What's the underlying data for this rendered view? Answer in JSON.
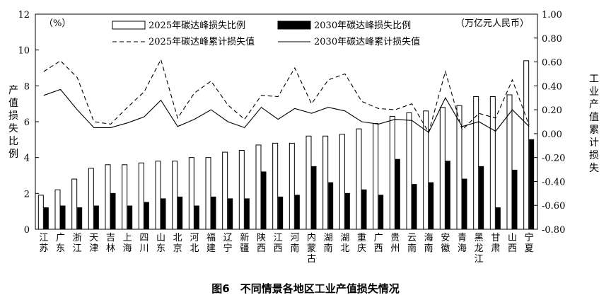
{
  "caption": "图6　不同情景各地区工业产值损失情况",
  "chart_data": {
    "type": "bar",
    "combo": "bar-and-line",
    "left_axis": {
      "unit": "（%）",
      "label_chars": [
        "产",
        "值",
        "损",
        "失",
        "比",
        "例"
      ],
      "ylim": [
        0,
        12
      ],
      "ticks": [
        0,
        2,
        4,
        6,
        8,
        10,
        12
      ]
    },
    "right_axis": {
      "unit": "（万亿元人民币）",
      "label_chars": [
        "工",
        "业",
        "产",
        "值",
        "累",
        "计",
        "损",
        "失"
      ],
      "ylim": [
        -0.8,
        1.0
      ],
      "ticks": [
        "-0.80",
        "-0.60",
        "-0.40",
        "-0.20",
        "0.00",
        "0.20",
        "0.40",
        "0.60",
        "0.80",
        "1.00"
      ]
    },
    "categories": [
      [
        "江",
        "苏"
      ],
      [
        "广",
        "东"
      ],
      [
        "浙",
        "江"
      ],
      [
        "天",
        "津"
      ],
      [
        "吉",
        "林"
      ],
      [
        "上",
        "海"
      ],
      [
        "四",
        "川"
      ],
      [
        "山",
        "东"
      ],
      [
        "北",
        "京"
      ],
      [
        "河",
        "北"
      ],
      [
        "福",
        "建"
      ],
      [
        "辽",
        "宁"
      ],
      [
        "新",
        "疆"
      ],
      [
        "陕",
        "西"
      ],
      [
        "江",
        "西"
      ],
      [
        "河",
        "南"
      ],
      [
        "内",
        "蒙",
        "古"
      ],
      [
        "湖",
        "南"
      ],
      [
        "湖",
        "北"
      ],
      [
        "重",
        "庆"
      ],
      [
        "广",
        "西"
      ],
      [
        "贵",
        "州"
      ],
      [
        "云",
        "南"
      ],
      [
        "海",
        "南"
      ],
      [
        "安",
        "徽"
      ],
      [
        "青",
        "海"
      ],
      [
        "黑",
        "龙",
        "江"
      ],
      [
        "甘",
        "肃"
      ],
      [
        "山",
        "西"
      ],
      [
        "宁",
        "夏"
      ]
    ],
    "series": [
      {
        "name": "2025年碳达峰损失比例",
        "kind": "bar",
        "fill": "#ffffff",
        "values": [
          1.9,
          2.2,
          2.8,
          3.4,
          3.6,
          3.6,
          3.7,
          3.8,
          3.8,
          4.0,
          4.0,
          4.3,
          4.4,
          4.7,
          4.8,
          4.8,
          5.2,
          5.2,
          5.3,
          5.6,
          5.9,
          6.3,
          6.5,
          6.6,
          6.8,
          6.9,
          7.4,
          7.4,
          7.5,
          9.4
        ]
      },
      {
        "name": "2030年碳达峰损失比例",
        "kind": "bar",
        "fill": "#000000",
        "values": [
          1.2,
          1.3,
          1.2,
          1.3,
          2.0,
          1.3,
          1.5,
          1.7,
          1.8,
          1.3,
          1.8,
          1.7,
          1.7,
          3.2,
          1.8,
          1.9,
          3.5,
          2.6,
          2.0,
          2.2,
          1.9,
          3.9,
          2.5,
          2.6,
          3.8,
          2.8,
          3.5,
          1.2,
          3.3,
          5.0
        ]
      },
      {
        "name": "2025年碳达峰累计损失值",
        "kind": "line",
        "dash": true,
        "axis": "right",
        "values": [
          0.52,
          0.61,
          0.47,
          0.1,
          0.08,
          0.22,
          0.35,
          0.62,
          0.13,
          0.34,
          0.44,
          0.24,
          0.12,
          0.32,
          0.31,
          0.55,
          0.25,
          0.45,
          0.5,
          0.27,
          0.21,
          0.2,
          0.25,
          0.01,
          0.52,
          0.03,
          0.17,
          0.13,
          0.45,
          0.07
        ]
      },
      {
        "name": "2030年碳达峰累计损失值",
        "kind": "line",
        "dash": false,
        "axis": "right",
        "values": [
          0.32,
          0.37,
          0.2,
          0.05,
          0.05,
          0.09,
          0.14,
          0.28,
          0.06,
          0.12,
          0.2,
          0.1,
          0.05,
          0.22,
          0.12,
          0.21,
          0.17,
          0.22,
          0.19,
          0.1,
          0.08,
          0.12,
          0.11,
          0.01,
          0.3,
          0.06,
          0.1,
          0.02,
          0.2,
          0.06
        ]
      }
    ]
  }
}
